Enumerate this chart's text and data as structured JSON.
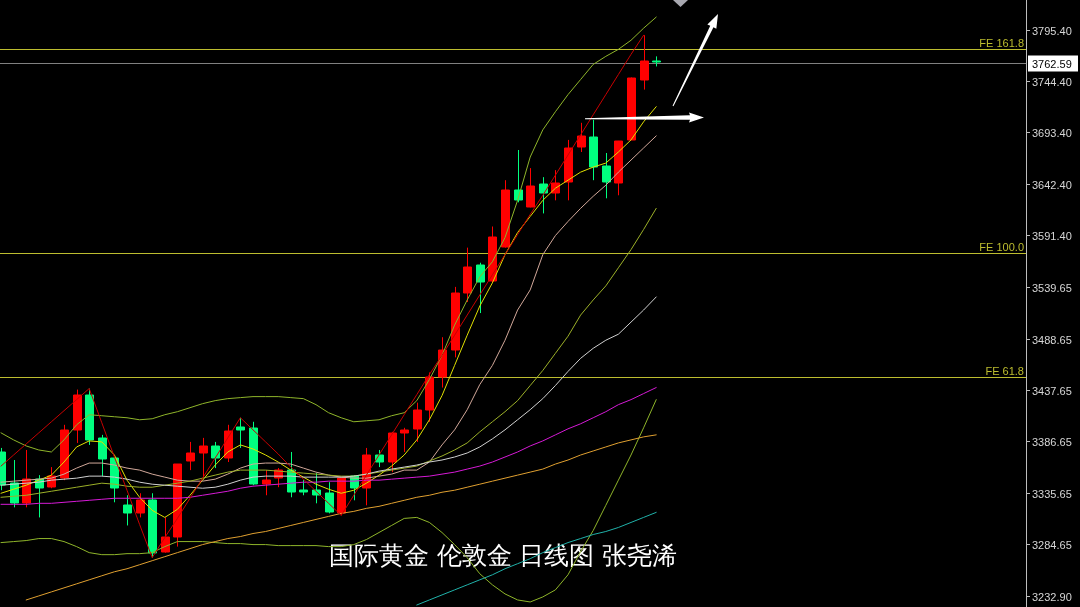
{
  "chart_data": {
    "type": "candlestick",
    "categories": [
      null,
      null,
      null,
      null,
      null,
      null,
      null,
      null,
      null,
      null,
      null,
      null,
      null,
      null,
      null,
      null,
      null,
      null,
      null,
      null,
      null,
      null,
      null,
      null,
      null,
      null,
      null,
      null,
      null,
      null,
      null,
      null,
      null,
      null,
      null,
      null,
      null,
      null,
      null,
      null,
      null,
      null,
      null,
      null,
      null,
      null,
      null,
      null,
      null,
      null,
      null,
      null,
      null
    ],
    "ohlc": [
      [
        3376,
        3380,
        3338,
        3343
      ],
      [
        3345,
        3368,
        3321,
        3325
      ],
      [
        3325,
        3378,
        3321,
        3349
      ],
      [
        3349,
        3353,
        3311,
        3340
      ],
      [
        3341,
        3361,
        3340,
        3352
      ],
      [
        3350,
        3403,
        3348,
        3398
      ],
      [
        3398,
        3438,
        3385,
        3433
      ],
      [
        3433,
        3439,
        3383,
        3388
      ],
      [
        3390,
        3393,
        3352,
        3369
      ],
      [
        3370,
        3370,
        3326,
        3340
      ],
      [
        3323,
        3333,
        3303,
        3315
      ],
      [
        3315,
        3335,
        3311,
        3328
      ],
      [
        3328,
        3335,
        3271,
        3276
      ],
      [
        3277,
        3311,
        3276,
        3292
      ],
      [
        3292,
        3364,
        3282,
        3364
      ],
      [
        3367,
        3386,
        3358,
        3375
      ],
      [
        3375,
        3390,
        3351,
        3382
      ],
      [
        3382,
        3386,
        3360,
        3370
      ],
      [
        3370,
        3403,
        3366,
        3397
      ],
      [
        3401,
        3410,
        3380,
        3398
      ],
      [
        3400,
        3406,
        3343,
        3344
      ],
      [
        3344,
        3358,
        3333,
        3348
      ],
      [
        3350,
        3360,
        3341,
        3358
      ],
      [
        3358,
        3376,
        3331,
        3336
      ],
      [
        3338,
        3348,
        3333,
        3336
      ],
      [
        3338,
        3355,
        3325,
        3333
      ],
      [
        3335,
        3346,
        3315,
        3316
      ],
      [
        3315,
        3350,
        3313,
        3350
      ],
      [
        3352,
        3353,
        3328,
        3340
      ],
      [
        3340,
        3380,
        3323,
        3373
      ],
      [
        3373,
        3378,
        3361,
        3366
      ],
      [
        3366,
        3396,
        3356,
        3395
      ],
      [
        3395,
        3400,
        3376,
        3398
      ],
      [
        3399,
        3425,
        3386,
        3418
      ],
      [
        3418,
        3455,
        3406,
        3450
      ],
      [
        3450,
        3490,
        3440,
        3477
      ],
      [
        3477,
        3540,
        3470,
        3534
      ],
      [
        3534,
        3579,
        3525,
        3560
      ],
      [
        3562,
        3564,
        3514,
        3545
      ],
      [
        3546,
        3600,
        3544,
        3590
      ],
      [
        3580,
        3646,
        3579,
        3636
      ],
      [
        3636,
        3676,
        3624,
        3626
      ],
      [
        3619,
        3658,
        3619,
        3640
      ],
      [
        3642,
        3649,
        3613,
        3633
      ],
      [
        3633,
        3656,
        3626,
        3643
      ],
      [
        3644,
        3686,
        3626,
        3678
      ],
      [
        3679,
        3703,
        3674,
        3690
      ],
      [
        3689,
        3706,
        3646,
        3659
      ],
      [
        3660,
        3673,
        3628,
        3644
      ],
      [
        3643,
        3685,
        3631,
        3685
      ],
      [
        3686,
        3748,
        3686,
        3748
      ],
      [
        3746,
        3790,
        3736,
        3764
      ],
      [
        3764,
        3769,
        3759,
        3763
      ]
    ],
    "colors": [
      "#00ff7f",
      "#00ff7f",
      "#ff0000",
      "#00ff7f",
      "#ff0000",
      "#ff0000",
      "#ff0000",
      "#00ff7f",
      "#00ff7f",
      "#00ff7f",
      "#00ff7f",
      "#ff0000",
      "#00ff7f",
      "#ff0000",
      "#ff0000",
      "#ff0000",
      "#ff0000",
      "#00ff7f",
      "#ff0000",
      "#00ff7f",
      "#00ff7f",
      "#ff0000",
      "#ff0000",
      "#00ff7f",
      "#00ff7f",
      "#00ff7f",
      "#00ff7f",
      "#ff0000",
      "#00ff7f",
      "#ff0000",
      "#00ff7f",
      "#ff0000",
      "#ff0000",
      "#ff0000",
      "#ff0000",
      "#ff0000",
      "#ff0000",
      "#ff0000",
      "#00ff7f",
      "#ff0000",
      "#ff0000",
      "#00ff7f",
      "#ff0000",
      "#00ff7f",
      "#ff0000",
      "#ff0000",
      "#ff0000",
      "#00ff7f",
      "#00ff7f",
      "#ff0000",
      "#ff0000",
      "#ff0000",
      "#00ff7f"
    ],
    "series": [
      {
        "type": "line",
        "color": "#8fb52a",
        "values": [
          3395,
          3388,
          3382,
          3378,
          3376,
          3388,
          3403,
          3413,
          3412,
          3411,
          3410,
          3408,
          3409,
          3413,
          3416,
          3420,
          3424,
          3427,
          3429,
          3430,
          3431,
          3431,
          3431,
          3430,
          3429,
          3423,
          3415,
          3410,
          3406,
          3407,
          3408,
          3412,
          3415,
          3427,
          3448,
          3472,
          3502,
          3527,
          3550,
          3565,
          3589,
          3626,
          3669,
          3696,
          3714,
          3731,
          3746,
          3761,
          3769,
          3776,
          3785,
          3797,
          3808
        ]
      },
      {
        "type": "line",
        "color": "#8fb52a",
        "values": [
          3286,
          3287,
          3288,
          3290,
          3290,
          3287,
          3282,
          3276,
          3274,
          3274,
          3275,
          3275,
          3276,
          3282,
          3287,
          3287,
          3287,
          3286,
          3285,
          3285,
          3284,
          3284,
          3283,
          3283,
          3283,
          3283,
          3282,
          3282,
          3284,
          3289,
          3296,
          3303,
          3310,
          3311,
          3306,
          3296,
          3284,
          3271,
          3255,
          3244,
          3235,
          3229,
          3227,
          3232,
          3239,
          3254,
          3277,
          3298,
          3323,
          3348,
          3373,
          3400,
          3428
        ]
      },
      {
        "type": "line",
        "color": "#e0e000",
        "values": [
          3335,
          3339,
          3343,
          3348,
          3353,
          3366,
          3381,
          3387,
          3386,
          3373,
          3348,
          3331,
          3318,
          3311,
          3319,
          3333,
          3348,
          3363,
          3376,
          3383,
          3379,
          3373,
          3366,
          3358,
          3351,
          3344,
          3339,
          3335,
          3338,
          3345,
          3353,
          3362,
          3373,
          3388,
          3408,
          3432,
          3462,
          3492,
          3521,
          3544,
          3572,
          3594,
          3610,
          3626,
          3638,
          3646,
          3654,
          3659,
          3663,
          3674,
          3686,
          3704,
          3719
        ]
      },
      {
        "type": "line",
        "color": "#d2a89a",
        "values": [
          3346,
          3347,
          3348,
          3349,
          3350,
          3354,
          3360,
          3365,
          3365,
          3363,
          3360,
          3358,
          3354,
          3351,
          3348,
          3347,
          3347,
          3349,
          3354,
          3360,
          3364,
          3365,
          3365,
          3364,
          3360,
          3356,
          3353,
          3351,
          3350,
          3350,
          3352,
          3354,
          3358,
          3358,
          3366,
          3383,
          3398,
          3418,
          3443,
          3462,
          3487,
          3517,
          3537,
          3572,
          3591,
          3605,
          3618,
          3630,
          3641,
          3654,
          3666,
          3678,
          3690
        ]
      },
      {
        "type": "line",
        "color": "#9cb028",
        "values": [
          3331,
          3332,
          3333,
          3335,
          3337,
          3339,
          3341,
          3343,
          3345,
          3344,
          3342,
          3341,
          3341,
          3343,
          3345,
          3347,
          3350,
          3353,
          3356,
          3358,
          3358,
          3358,
          3357,
          3356,
          3355,
          3354,
          3353,
          3352,
          3352,
          3354,
          3356,
          3358,
          3360,
          3362,
          3367,
          3372,
          3378,
          3385,
          3396,
          3406,
          3416,
          3427,
          3442,
          3457,
          3474,
          3491,
          3512,
          3527,
          3541,
          3559,
          3577,
          3597,
          3618
        ]
      },
      {
        "type": "line",
        "color": "#d0d0d0",
        "values": [
          3343,
          3344,
          3345,
          3346,
          3348,
          3349,
          3350,
          3352,
          3352,
          3351,
          3349,
          3346,
          3344,
          3343,
          3342,
          3341,
          3340,
          3341,
          3344,
          3348,
          3351,
          3352,
          3352,
          3352,
          3351,
          3351,
          3351,
          3351,
          3352,
          3354,
          3357,
          3359,
          3361,
          3363,
          3366,
          3368,
          3371,
          3375,
          3381,
          3389,
          3398,
          3408,
          3418,
          3429,
          3442,
          3456,
          3469,
          3479,
          3487,
          3493,
          3505,
          3517,
          3530
        ]
      },
      {
        "type": "line",
        "color": "#d61ad6",
        "values": [
          3324,
          3324,
          3324,
          3325,
          3325,
          3326,
          3327,
          3328,
          3329,
          3330,
          3330,
          3330,
          3330,
          3330,
          3330,
          3331,
          3333,
          3335,
          3337,
          3340,
          3342,
          3343,
          3344,
          3345,
          3346,
          3346,
          3347,
          3347,
          3347,
          3348,
          3348,
          3349,
          3350,
          3351,
          3352,
          3354,
          3356,
          3359,
          3362,
          3366,
          3371,
          3376,
          3382,
          3387,
          3393,
          3399,
          3404,
          3410,
          3416,
          3423,
          3428,
          3434,
          3440
        ]
      },
      {
        "type": "line",
        "color": "#e0a030",
        "values": [
          null,
          null,
          3229,
          3233,
          3237,
          3241,
          3245,
          3249,
          3253,
          3257,
          3260,
          3264,
          3268,
          3272,
          3276,
          3280,
          3284,
          3287,
          3290,
          3292,
          3295,
          3297,
          3300,
          3303,
          3306,
          3309,
          3312,
          3315,
          3317,
          3320,
          3322,
          3325,
          3328,
          3331,
          3333,
          3336,
          3338,
          3341,
          3344,
          3347,
          3350,
          3353,
          3356,
          3359,
          3364,
          3368,
          3373,
          3377,
          3381,
          3385,
          3388,
          3391,
          3393
        ]
      },
      {
        "type": "line",
        "color": "#20b2aa",
        "values": [
          null,
          null,
          null,
          null,
          null,
          null,
          null,
          null,
          null,
          null,
          null,
          null,
          null,
          null,
          null,
          null,
          null,
          null,
          null,
          null,
          null,
          null,
          null,
          null,
          null,
          null,
          null,
          null,
          null,
          null,
          null,
          null,
          null,
          3224,
          3229,
          3234,
          3239,
          3244,
          3249,
          3254,
          3260,
          3265,
          3270,
          3276,
          3281,
          3286,
          3290,
          3294,
          3297,
          3301,
          3306,
          3311,
          3316
        ]
      },
      {
        "type": "line",
        "color": "#c80000",
        "values": [
          3362,
          3373,
          3384,
          3395,
          3406,
          3417,
          3428,
          3439,
          3405,
          3371,
          3338,
          3304,
          3271,
          3291,
          3310,
          3330,
          3350,
          3370,
          3390,
          3410,
          3398,
          3386,
          3374,
          3361,
          3349,
          3337,
          3325,
          3313,
          3333,
          3353,
          3373,
          3393,
          3413,
          3433,
          3453,
          3472,
          3492,
          3512,
          3532,
          3552,
          3572,
          3592,
          3612,
          3631,
          3651,
          3671,
          3691,
          3711,
          3731,
          3751,
          3771,
          3790,
          null
        ]
      }
    ],
    "ylim": [
      3222,
      3825
    ],
    "yticks": [
      {
        "value": 3795.4,
        "label": "3795.40"
      },
      {
        "value": 3744.4,
        "label": "3744.40"
      },
      {
        "value": 3693.4,
        "label": "3693.40"
      },
      {
        "value": 3642.4,
        "label": "3642.40"
      },
      {
        "value": 3591.4,
        "label": "3591.40"
      },
      {
        "value": 3539.65,
        "label": "3539.65"
      },
      {
        "value": 3488.65,
        "label": "3488.65"
      },
      {
        "value": 3437.65,
        "label": "3437.65"
      },
      {
        "value": 3386.65,
        "label": "3386.65"
      },
      {
        "value": 3335.65,
        "label": "3335.65"
      },
      {
        "value": 3284.65,
        "label": "3284.65"
      },
      {
        "value": 3232.9,
        "label": "3232.90"
      }
    ],
    "tick_labels": "y",
    "ref_lines": [
      {
        "axis": "y",
        "value": 3776,
        "label": "FE 161.8",
        "color": "#bdbd2f"
      },
      {
        "axis": "y",
        "value": 3762.59,
        "label": "3762.59",
        "color": "#808080"
      },
      {
        "axis": "y",
        "value": 3574,
        "label": "FE 100.0",
        "color": "#bdbd2f"
      },
      {
        "axis": "y",
        "value": 3450,
        "label": "FE 61.8",
        "color": "#bdbd2f"
      }
    ],
    "annotations": [
      "国际黄金 伦敦金 日线图 张尧浠"
    ]
  }
}
